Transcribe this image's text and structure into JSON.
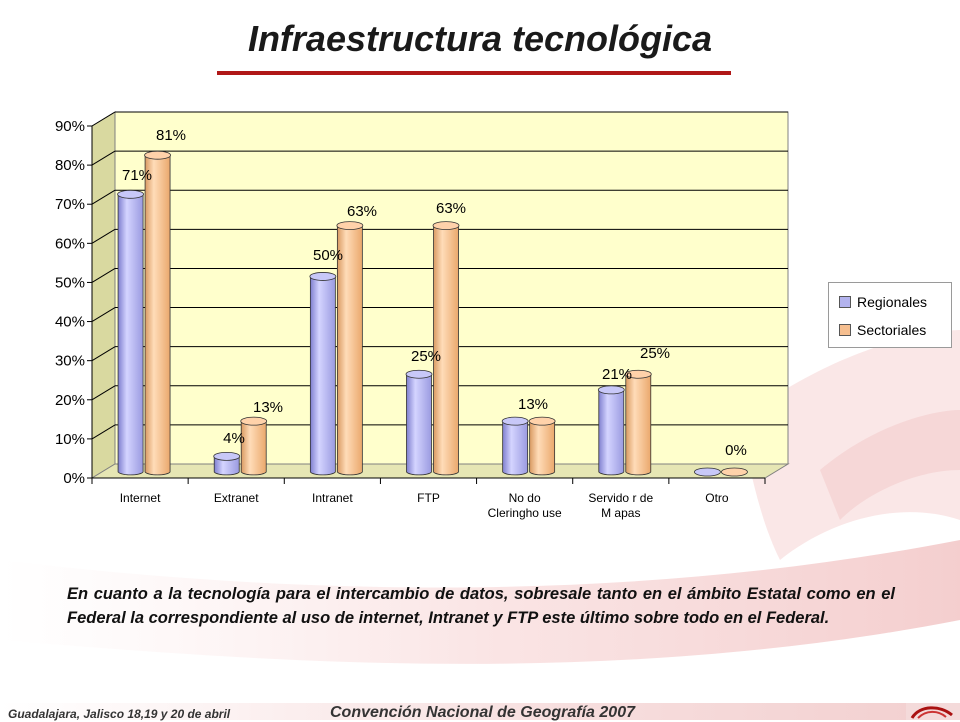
{
  "slide": {
    "title": "Infraestructura tecnológica",
    "body": "En cuanto a la tecnología para el intercambio de datos, sobresale tanto en el ámbito Estatal como en el Federal la correspondiente al uso de internet, Intranet y FTP este último sobre todo en el Federal.",
    "footer_left": "Guadalajara, Jalisco 18,19 y 20 de abril",
    "footer_center": "Convención Nacional de Geografía 2007"
  },
  "colors": {
    "regionales": "#b3b3ee",
    "sectoriales": "#f6bf90",
    "plot_background": "#ffffcc",
    "title_rule": "#b01818"
  },
  "chart_data": {
    "type": "bar",
    "categories": [
      "Internet",
      "Extranet",
      "Intranet",
      "FTP",
      "Nodo\nCleringhouse",
      "Servidor de\nMapas",
      "Otro"
    ],
    "category_lines": [
      [
        "Internet"
      ],
      [
        "Extranet"
      ],
      [
        "Intranet"
      ],
      [
        "FTP"
      ],
      [
        "No do",
        "Cleringho use"
      ],
      [
        "Servido r de",
        "M apas"
      ],
      [
        "Otro"
      ]
    ],
    "series": [
      {
        "name": "Regionales",
        "values": [
          71,
          4,
          50,
          25,
          13,
          21,
          0
        ]
      },
      {
        "name": "Sectoriales",
        "values": [
          81,
          13,
          63,
          63,
          13,
          25,
          0
        ]
      }
    ],
    "data_labels": [
      {
        "text": "71%",
        "x": "Internet",
        "series": "Regionales"
      },
      {
        "text": "81%",
        "x": "Internet",
        "series": "Sectoriales"
      },
      {
        "text": "4%",
        "x": "Extranet",
        "series": "Regionales"
      },
      {
        "text": "13%",
        "x": "Extranet",
        "series": "Sectoriales"
      },
      {
        "text": "50%",
        "x": "Intranet",
        "series": "Regionales"
      },
      {
        "text": "63%",
        "x": "Intranet",
        "series": "Sectoriales"
      },
      {
        "text": "63%",
        "x": "FTP",
        "series": "Sectoriales"
      },
      {
        "text": "25%",
        "x": "FTP",
        "series": "Regionales"
      },
      {
        "text": "13%",
        "x": "Nodo\nCleringhouse",
        "series": "both"
      },
      {
        "text": "21%",
        "x": "Servidor de\nMapas",
        "series": "Regionales"
      },
      {
        "text": "25%",
        "x": "Servidor de\nMapas",
        "series": "Sectoriales"
      },
      {
        "text": "0%",
        "x": "Otro",
        "series": "both"
      }
    ],
    "y_ticks": [
      "0%",
      "10%",
      "20%",
      "30%",
      "40%",
      "50%",
      "60%",
      "70%",
      "80%",
      "90%"
    ],
    "ylim": [
      0,
      90
    ],
    "legend_position": "right",
    "grid": true,
    "title": "",
    "xlabel": "",
    "ylabel": ""
  }
}
